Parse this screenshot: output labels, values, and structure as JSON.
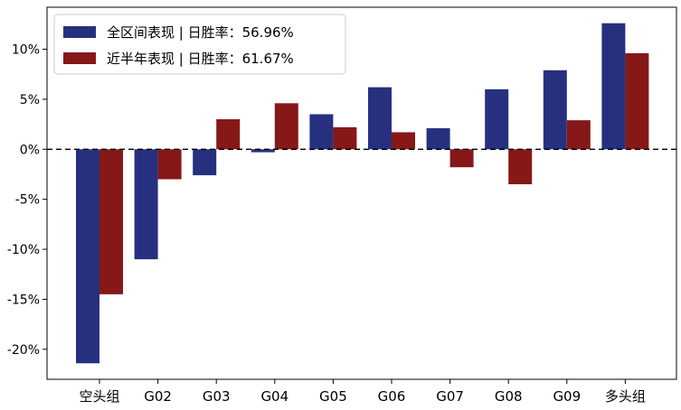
{
  "chart_data": {
    "type": "bar",
    "categories": [
      "空头组",
      "G02",
      "G03",
      "G04",
      "G05",
      "G06",
      "G07",
      "G08",
      "G09",
      "多头组"
    ],
    "series": [
      {
        "name": "全区间表现 | 日胜率：56.96%",
        "color": "#27307e",
        "values": [
          -21.4,
          -11.0,
          -2.6,
          -0.3,
          3.5,
          6.2,
          2.1,
          6.0,
          7.9,
          12.6
        ]
      },
      {
        "name": "近半年表现 | 日胜率：61.67%",
        "color": "#861817",
        "values": [
          -14.5,
          -3.0,
          3.0,
          4.6,
          2.2,
          1.7,
          -1.8,
          -3.5,
          2.9,
          9.6
        ]
      }
    ],
    "ylim": [
      -23,
      14.2
    ],
    "yticks": [
      -20,
      -15,
      -10,
      -5,
      0,
      5,
      10
    ],
    "ytick_labels": [
      "-20%",
      "-15%",
      "-10%",
      "-5%",
      "0%",
      "5%",
      "10%"
    ],
    "zero_line": "dashed",
    "grid": false,
    "legend_position": "top-left",
    "title": "",
    "xlabel": "",
    "ylabel": ""
  }
}
